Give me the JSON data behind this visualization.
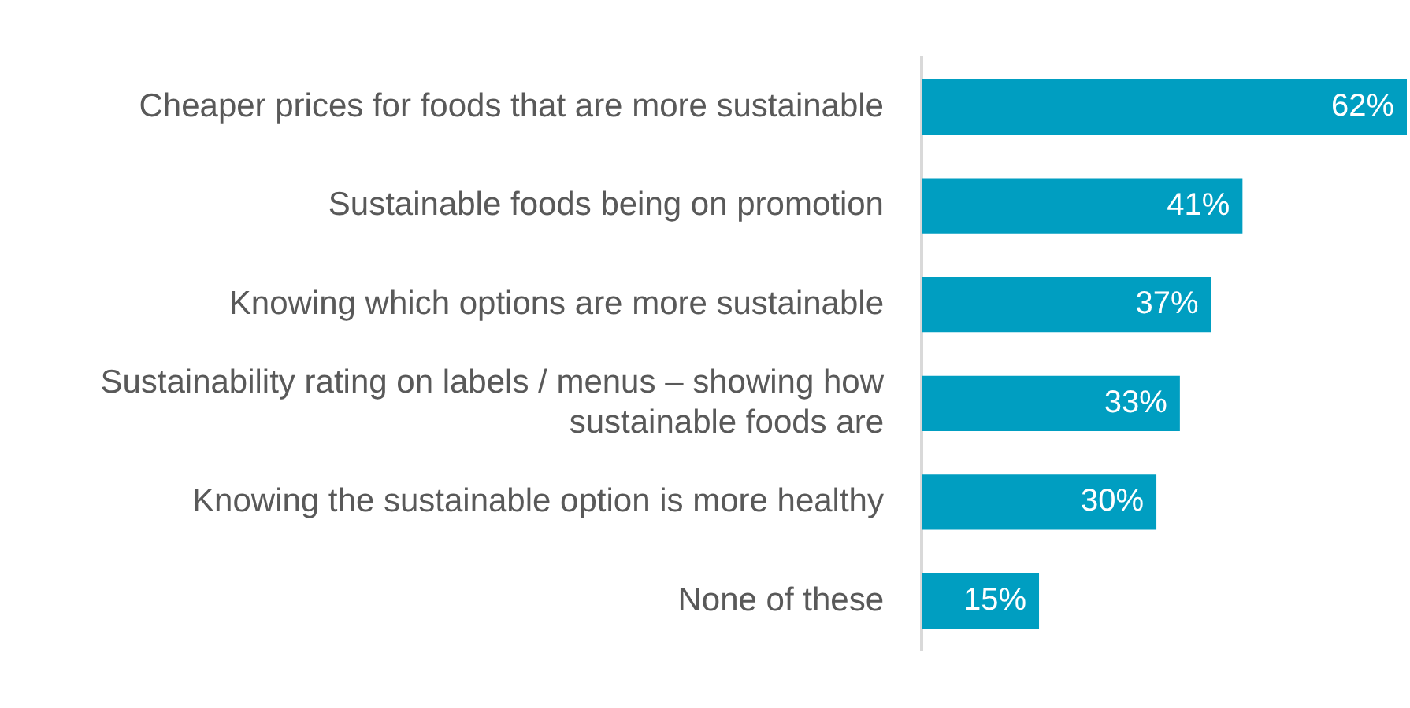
{
  "chart_data": {
    "type": "bar",
    "orientation": "horizontal",
    "categories": [
      "Cheaper prices for foods that are more sustainable",
      "Sustainable foods being on promotion",
      "Knowing which options are more sustainable",
      "Sustainability rating on labels / menus – showing how sustainable foods are",
      "Knowing the sustainable option is more healthy",
      "None of these"
    ],
    "values": [
      62,
      41,
      37,
      33,
      30,
      15
    ],
    "value_labels": [
      "62%",
      "41%",
      "37%",
      "33%",
      "30%",
      "15%"
    ],
    "color": "#009ec1"
  }
}
